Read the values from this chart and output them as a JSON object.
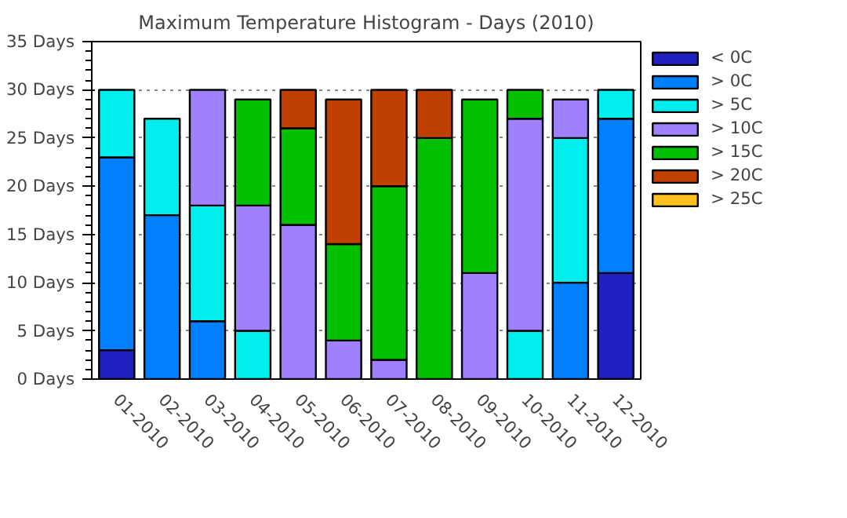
{
  "chart_data": {
    "type": "bar",
    "title": "Maximum Temperature Histogram - Days (2010)",
    "stacked": true,
    "categories": [
      "01-2010",
      "02-2010",
      "03-2010",
      "04-2010",
      "05-2010",
      "06-2010",
      "07-2010",
      "08-2010",
      "09-2010",
      "10-2010",
      "11-2010",
      "12-2010"
    ],
    "ylim": [
      0,
      35
    ],
    "yticks": [
      {
        "value": 0,
        "label": "0 Days"
      },
      {
        "value": 5,
        "label": "5 Days"
      },
      {
        "value": 10,
        "label": "10 Days"
      },
      {
        "value": 15,
        "label": "15 Days"
      },
      {
        "value": 20,
        "label": "20 Days"
      },
      {
        "value": 25,
        "label": "25 Days"
      },
      {
        "value": 30,
        "label": "30 Days"
      },
      {
        "value": 35,
        "label": "35 Days"
      }
    ],
    "grid": "y",
    "legend": "right",
    "series": [
      {
        "name": "< 0C",
        "color": "#2020c0",
        "values": [
          3,
          0,
          0,
          0,
          0,
          0,
          0,
          0,
          0,
          0,
          0,
          11
        ]
      },
      {
        "name": "> 0C",
        "color": "#0080ff",
        "values": [
          20,
          17,
          6,
          0,
          0,
          0,
          0,
          0,
          0,
          0,
          10,
          16
        ]
      },
      {
        "name": "> 5C",
        "color": "#00eeee",
        "values": [
          7,
          10,
          12,
          5,
          0,
          0,
          0,
          0,
          0,
          5,
          15,
          3
        ]
      },
      {
        "name": "> 10C",
        "color": "#a080ff",
        "values": [
          0,
          0,
          12,
          13,
          16,
          4,
          2,
          0,
          11,
          22,
          4,
          0
        ]
      },
      {
        "name": "> 15C",
        "color": "#00c000",
        "values": [
          0,
          0,
          0,
          11,
          10,
          10,
          18,
          25,
          18,
          3,
          0,
          0
        ]
      },
      {
        "name": "> 20C",
        "color": "#c04000",
        "values": [
          0,
          0,
          0,
          0,
          4,
          15,
          10,
          5,
          0,
          0,
          0,
          0
        ]
      },
      {
        "name": "> 25C",
        "color": "#ffc020",
        "values": [
          0,
          0,
          0,
          0,
          0,
          0,
          0,
          0,
          0,
          0,
          0,
          0
        ]
      }
    ]
  }
}
